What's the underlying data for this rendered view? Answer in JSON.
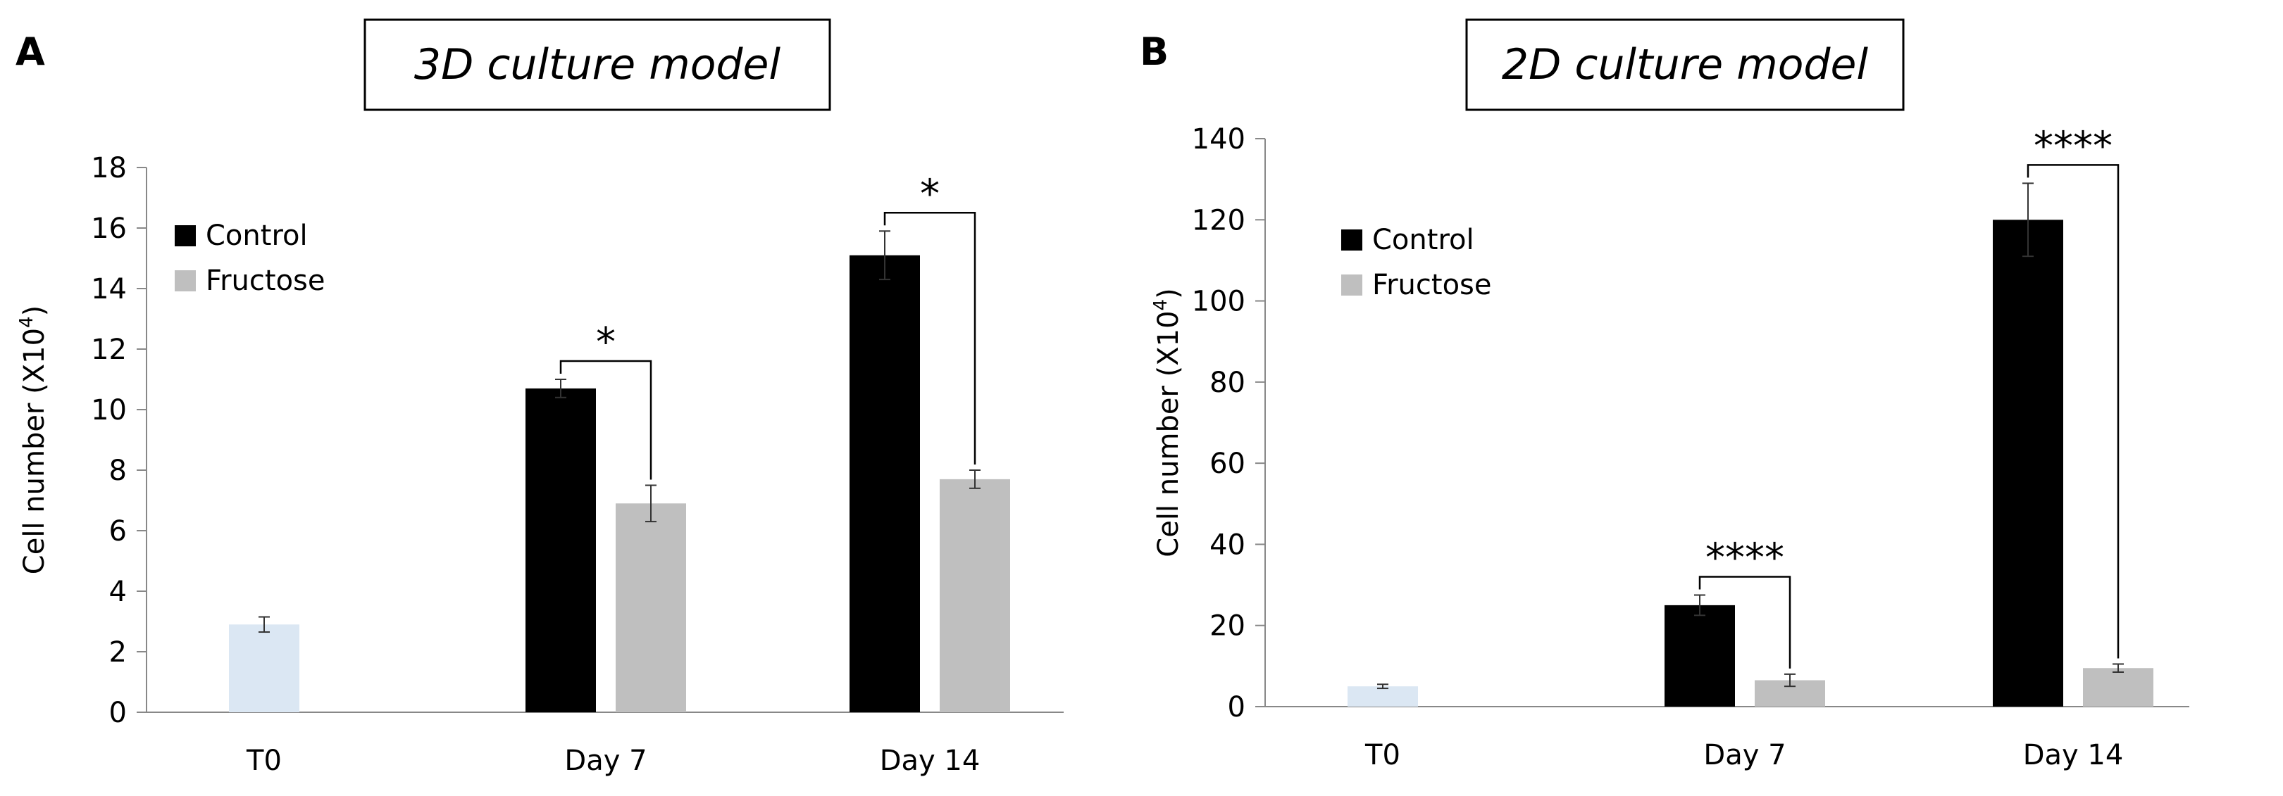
{
  "colors": {
    "control": "#000000",
    "fructose": "#bfbfbf",
    "t0": "#dbe7f3",
    "axis": "#888888",
    "errorbar": "#333333"
  },
  "chart_data": [
    {
      "type": "bar",
      "panel_label": "A",
      "title": "3D culture model",
      "xlabel": "",
      "ylabel_main": "Cell number (X10",
      "ylabel_sup": "4",
      "ylabel_end": ")",
      "ylim": [
        0,
        18
      ],
      "yticks": [
        0,
        2,
        4,
        6,
        8,
        10,
        12,
        14,
        16,
        18
      ],
      "categories": [
        "T0",
        "Day 7",
        "Day 14"
      ],
      "legend_position": "top-left",
      "series": [
        {
          "name": "T0",
          "color_key": "t0",
          "in_legend": false,
          "values": [
            2.9,
            null,
            null
          ],
          "errors": [
            0.25,
            null,
            null
          ]
        },
        {
          "name": "Control",
          "color_key": "control",
          "in_legend": true,
          "values": [
            null,
            10.7,
            15.1
          ],
          "errors": [
            null,
            0.3,
            0.8
          ]
        },
        {
          "name": "Fructose",
          "color_key": "fructose",
          "in_legend": true,
          "values": [
            null,
            6.9,
            7.7
          ],
          "errors": [
            null,
            0.6,
            0.3
          ]
        }
      ],
      "significance": [
        {
          "category": "Day 7",
          "label": "*"
        },
        {
          "category": "Day 14",
          "label": "*"
        }
      ]
    },
    {
      "type": "bar",
      "panel_label": "B",
      "title": "2D culture model",
      "xlabel": "",
      "ylabel_main": "Cell number (X10",
      "ylabel_sup": "4",
      "ylabel_end": ")",
      "ylim": [
        0,
        140
      ],
      "yticks": [
        0,
        20,
        40,
        60,
        80,
        100,
        120,
        140
      ],
      "categories": [
        "T0",
        "Day 7",
        "Day 14"
      ],
      "legend_position": "top-left",
      "series": [
        {
          "name": "T0",
          "color_key": "t0",
          "in_legend": false,
          "values": [
            5,
            null,
            null
          ],
          "errors": [
            0.5,
            null,
            null
          ]
        },
        {
          "name": "Control",
          "color_key": "control",
          "in_legend": true,
          "values": [
            null,
            25,
            120
          ],
          "errors": [
            null,
            2.5,
            9
          ]
        },
        {
          "name": "Fructose",
          "color_key": "fructose",
          "in_legend": true,
          "values": [
            null,
            6.5,
            9.5
          ],
          "errors": [
            null,
            1.5,
            1
          ]
        }
      ],
      "significance": [
        {
          "category": "Day 7",
          "label": "****"
        },
        {
          "category": "Day 14",
          "label": "****"
        }
      ]
    }
  ]
}
